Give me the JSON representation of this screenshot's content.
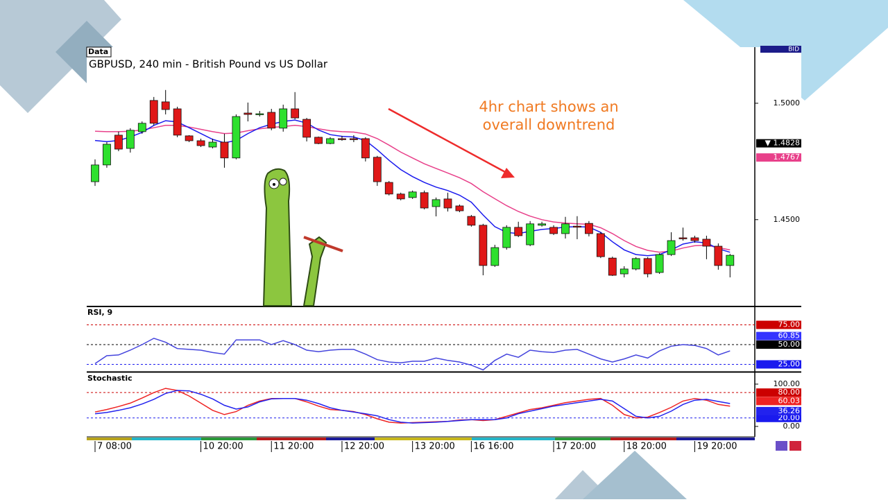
{
  "chart_data": [
    {
      "type": "candlestick",
      "label": "Data",
      "title": "GBPUSD, 240 min - British Pound vs US Dollar",
      "bid_label": "BID",
      "annotation": [
        "4hr chart shows an",
        "overall downtrend"
      ],
      "categories": [
        "7 08:00",
        null,
        null,
        null,
        null,
        null,
        null,
        null,
        null,
        "10 20:00",
        null,
        null,
        null,
        null,
        null,
        "11 20:00",
        null,
        null,
        null,
        null,
        null,
        "12 20:00",
        null,
        null,
        null,
        null,
        null,
        "13 20:00",
        null,
        null,
        null,
        null,
        "16 16:00",
        null,
        null,
        null,
        null,
        null,
        null,
        "17 20:00",
        null,
        null,
        null,
        null,
        null,
        "18 20:00",
        null,
        null,
        null,
        null,
        null,
        "19 20:00",
        null,
        null,
        null
      ],
      "ohlc": [
        [
          1.4663,
          1.4759,
          1.4645,
          1.4735
        ],
        [
          1.4735,
          1.4833,
          1.4723,
          1.4824
        ],
        [
          1.4863,
          1.4878,
          1.4794,
          1.4803
        ],
        [
          1.4806,
          1.4893,
          1.4788,
          1.4884
        ],
        [
          1.4878,
          1.4922,
          1.4869,
          1.4914
        ],
        [
          1.5012,
          1.5027,
          1.4905,
          1.4914
        ],
        [
          1.5006,
          1.5057,
          1.4952,
          1.4973
        ],
        [
          1.4976,
          1.4985,
          1.4854,
          1.4863
        ],
        [
          1.486,
          1.4863,
          1.4833,
          1.4839
        ],
        [
          1.4839,
          1.4848,
          1.4812,
          1.4818
        ],
        [
          1.4812,
          1.4848,
          1.4806,
          1.4833
        ],
        [
          1.4833,
          1.4869,
          1.4723,
          1.4765
        ],
        [
          1.4765,
          1.4952,
          1.4759,
          1.4943
        ],
        [
          1.4958,
          1.5003,
          1.4922,
          1.4952
        ],
        [
          1.4952,
          1.4967,
          1.4943,
          1.4955
        ],
        [
          1.4961,
          1.4976,
          1.4884,
          1.4893
        ],
        [
          1.4893,
          1.4994,
          1.4878,
          1.4976
        ],
        [
          1.4976,
          1.5048,
          1.4931,
          1.4937
        ],
        [
          1.4931,
          1.4937,
          1.4836,
          1.4854
        ],
        [
          1.4854,
          1.4857,
          1.4824,
          1.4827
        ],
        [
          1.4827,
          1.4854,
          1.4824,
          1.4848
        ],
        [
          1.4848,
          1.486,
          1.4839,
          1.4846
        ],
        [
          1.4848,
          1.4863,
          1.4833,
          1.4845
        ],
        [
          1.4848,
          1.4854,
          1.475,
          1.4765
        ],
        [
          1.4768,
          1.4774,
          1.4645,
          1.4663
        ],
        [
          1.466,
          1.4666,
          1.4604,
          1.461
        ],
        [
          1.461,
          1.4616,
          1.4583,
          1.4589
        ],
        [
          1.4595,
          1.4625,
          1.4589,
          1.4619
        ],
        [
          1.4616,
          1.4625,
          1.4544,
          1.455
        ],
        [
          1.4556,
          1.4595,
          1.4514,
          1.4586
        ],
        [
          1.4589,
          1.4616,
          1.4535,
          1.455
        ],
        [
          1.4559,
          1.4565,
          1.4532,
          1.4538
        ],
        [
          1.4514,
          1.452,
          1.447,
          1.4476
        ],
        [
          1.4476,
          1.4482,
          1.4261,
          1.4303
        ],
        [
          1.4303,
          1.4392,
          1.4297,
          1.438
        ],
        [
          1.438,
          1.4476,
          1.4371,
          1.4467
        ],
        [
          1.4467,
          1.4491,
          1.4425,
          1.4431
        ],
        [
          1.4392,
          1.4494,
          1.4386,
          1.4482
        ],
        [
          1.4476,
          1.4491,
          1.447,
          1.4482
        ],
        [
          1.4467,
          1.4476,
          1.4434,
          1.444
        ],
        [
          1.444,
          1.4512,
          1.4419,
          1.4482
        ],
        [
          1.4472,
          1.4515,
          1.4416,
          1.447
        ],
        [
          1.4484,
          1.4494,
          1.4428,
          1.444
        ],
        [
          1.444,
          1.4446,
          1.4335,
          1.4341
        ],
        [
          1.4335,
          1.4341,
          1.4258,
          1.4261
        ],
        [
          1.4267,
          1.43,
          1.4252,
          1.4288
        ],
        [
          1.4288,
          1.4339,
          1.4282,
          1.4333
        ],
        [
          1.4333,
          1.4339,
          1.4252,
          1.4267
        ],
        [
          1.4273,
          1.4356,
          1.4267,
          1.435
        ],
        [
          1.435,
          1.4446,
          1.4344,
          1.441
        ],
        [
          1.4422,
          1.4466,
          1.441,
          1.442
        ],
        [
          1.4422,
          1.4431,
          1.4401,
          1.441
        ],
        [
          1.4416,
          1.4431,
          1.433,
          1.4386
        ],
        [
          1.4386,
          1.4398,
          1.4285,
          1.4303
        ],
        [
          1.4303,
          1.4353,
          1.4252,
          1.4347
        ]
      ],
      "up_color": "#2ee02e",
      "down_color": "#e01818",
      "series": [
        {
          "color": "#e8408a",
          "values": [
            1.488,
            1.4878,
            1.4878,
            1.488,
            1.4885,
            1.4895,
            1.4905,
            1.4905,
            1.4898,
            1.4888,
            1.4878,
            1.487,
            1.4872,
            1.4882,
            1.489,
            1.4896,
            1.49,
            1.4905,
            1.49,
            1.489,
            1.4882,
            1.4878,
            1.4876,
            1.4868,
            1.4848,
            1.482,
            1.479,
            1.4765,
            1.474,
            1.472,
            1.47,
            1.468,
            1.4655,
            1.462,
            1.459,
            1.456,
            1.4535,
            1.4515,
            1.45,
            1.449,
            1.4485,
            1.4482,
            1.448,
            1.4465,
            1.444,
            1.441,
            1.4385,
            1.4368,
            1.436,
            1.4365,
            1.4378,
            1.4388,
            1.439,
            1.438,
            1.437
          ]
        },
        {
          "color": "#1a1aee",
          "values": [
            1.484,
            1.4835,
            1.484,
            1.4855,
            1.4875,
            1.4905,
            1.4925,
            1.492,
            1.4895,
            1.487,
            1.4845,
            1.483,
            1.484,
            1.487,
            1.4895,
            1.491,
            1.4922,
            1.4928,
            1.4915,
            1.4885,
            1.4865,
            1.4858,
            1.4855,
            1.484,
            1.48,
            1.4755,
            1.4715,
            1.4685,
            1.466,
            1.464,
            1.4625,
            1.4605,
            1.4575,
            1.452,
            1.447,
            1.4445,
            1.444,
            1.445,
            1.4458,
            1.4462,
            1.4468,
            1.447,
            1.4468,
            1.4445,
            1.4405,
            1.437,
            1.435,
            1.4345,
            1.435,
            1.437,
            1.4395,
            1.4405,
            1.44,
            1.4375,
            1.436
          ]
        }
      ],
      "ylim": [
        1.413,
        1.5241
      ],
      "yticks": [
        {
          "value": 1.45,
          "label": "1.4500"
        },
        {
          "value": 1.5,
          "label": "1.5000"
        }
      ],
      "markers": [
        {
          "value": 1.4828,
          "label": "▼ 1.4828",
          "color": "#000000"
        },
        {
          "value": 1.4767,
          "label": "1.4767",
          "color": "#e8408a"
        }
      ]
    },
    {
      "type": "line",
      "title": "RSI, 9",
      "series": [
        {
          "color": "#4444dd",
          "values": [
            26,
            36,
            37,
            43,
            50,
            58,
            53,
            45,
            44,
            43,
            40,
            38,
            56,
            56,
            56,
            50,
            55,
            50,
            43,
            41,
            43,
            44,
            44,
            38,
            31,
            28,
            27,
            29,
            29,
            33,
            30,
            28,
            24,
            18,
            30,
            38,
            34,
            43,
            41,
            40,
            43,
            44,
            38,
            32,
            28,
            32,
            37,
            33,
            42,
            48,
            50,
            49,
            45,
            37,
            42
          ]
        }
      ],
      "ylim": [
        16.7,
        96.5
      ],
      "yticks": [
        {
          "value": 25,
          "label": "25.00",
          "color": "#1a1aee"
        },
        {
          "value": 50,
          "label": "50.00",
          "color": "#000000"
        },
        {
          "value": 75,
          "label": "75.00",
          "color": "#cc0000"
        }
      ],
      "markers": [
        {
          "value": 60.85,
          "label": "60.85",
          "color": "#3333ff"
        }
      ]
    },
    {
      "type": "line",
      "title": "Stochastic",
      "series": [
        {
          "color": "#ee2222",
          "values": [
            34,
            40,
            47,
            55,
            67,
            80,
            90,
            85,
            72,
            55,
            38,
            28,
            35,
            50,
            60,
            66,
            66,
            66,
            58,
            48,
            40,
            38,
            35,
            28,
            18,
            10,
            8,
            9,
            10,
            11,
            12,
            15,
            16,
            14,
            16,
            24,
            32,
            40,
            44,
            50,
            56,
            60,
            64,
            66,
            50,
            28,
            20,
            22,
            33,
            45,
            60,
            66,
            62,
            52,
            48
          ]
        },
        {
          "color": "#2222ee",
          "values": [
            30,
            33,
            38,
            44,
            53,
            64,
            78,
            85,
            84,
            76,
            65,
            50,
            41,
            46,
            58,
            65,
            66,
            66,
            62,
            54,
            44,
            38,
            34,
            30,
            25,
            16,
            10,
            8,
            9,
            10,
            12,
            14,
            16,
            16,
            16,
            20,
            30,
            36,
            42,
            48,
            52,
            56,
            60,
            64,
            60,
            42,
            24,
            20,
            24,
            36,
            52,
            62,
            64,
            59,
            54
          ]
        }
      ],
      "ylim": [
        -24.6,
        126.2
      ],
      "yticks": [
        {
          "value": 0,
          "label": "0.00"
        },
        {
          "value": 20,
          "label": "20.00",
          "color": "#1a1aee"
        },
        {
          "value": 80,
          "label": "80.00",
          "color": "#cc0000"
        },
        {
          "value": 100,
          "label": "100.00"
        }
      ],
      "markers": [
        {
          "value": 60.03,
          "label": "60.03",
          "color": "#ee2222"
        },
        {
          "value": 36.26,
          "label": "36.26",
          "color": "#2222ee"
        }
      ]
    }
  ]
}
